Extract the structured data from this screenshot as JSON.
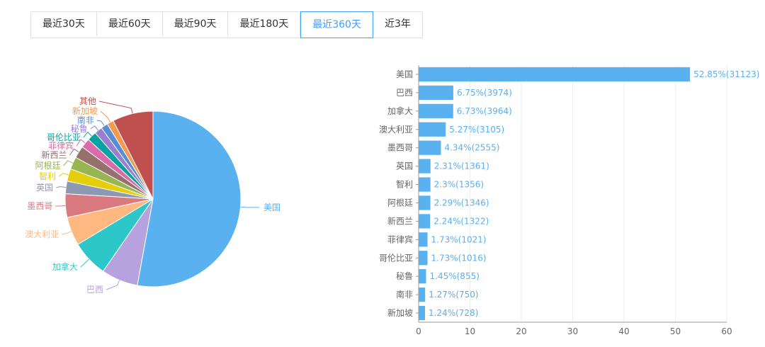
{
  "tabs": [
    {
      "label": "最近30天",
      "active": false
    },
    {
      "label": "最近60天",
      "active": false
    },
    {
      "label": "最近90天",
      "active": false
    },
    {
      "label": "最近180天",
      "active": false
    },
    {
      "label": "最近360天",
      "active": true
    },
    {
      "label": "近3年",
      "active": false
    }
  ],
  "accent_color": "#409eff",
  "chart_data": [
    {
      "type": "pie",
      "slices": [
        {
          "label": "美国",
          "value": 31123,
          "color": "#5ab1ef"
        },
        {
          "label": "巴西",
          "value": 3974,
          "color": "#b6a2de"
        },
        {
          "label": "加拿大",
          "value": 3964,
          "color": "#2ec7c9"
        },
        {
          "label": "澳大利亚",
          "value": 3105,
          "color": "#ffb980"
        },
        {
          "label": "墨西哥",
          "value": 2555,
          "color": "#d87a80"
        },
        {
          "label": "英国",
          "value": 1361,
          "color": "#8d98b3"
        },
        {
          "label": "智利",
          "value": 1356,
          "color": "#e5cf0d"
        },
        {
          "label": "阿根廷",
          "value": 1346,
          "color": "#97b552"
        },
        {
          "label": "新西兰",
          "value": 1322,
          "color": "#95706d"
        },
        {
          "label": "菲律宾",
          "value": 1021,
          "color": "#dc69aa"
        },
        {
          "label": "哥伦比亚",
          "value": 1016,
          "color": "#07a2a4"
        },
        {
          "label": "秘鲁",
          "value": 855,
          "color": "#9a7fd1"
        },
        {
          "label": "南非",
          "value": 750,
          "color": "#588dd5"
        },
        {
          "label": "新加坡",
          "value": 728,
          "color": "#f5994e"
        },
        {
          "label": "其他",
          "value": 4400,
          "color": "#c05050"
        }
      ]
    },
    {
      "type": "bar",
      "orientation": "horizontal",
      "categories": [
        "美国",
        "巴西",
        "加拿大",
        "澳大利亚",
        "墨西哥",
        "英国",
        "智利",
        "阿根廷",
        "新西兰",
        "菲律宾",
        "哥伦比亚",
        "秘鲁",
        "南非",
        "新加坡"
      ],
      "values": [
        52.85,
        6.75,
        6.73,
        5.27,
        4.34,
        2.31,
        2.3,
        2.29,
        2.24,
        1.73,
        1.73,
        1.45,
        1.27,
        1.24
      ],
      "labels": [
        "52.85%(31123)",
        "6.75%(3974)",
        "6.73%(3964)",
        "5.27%(3105)",
        "4.34%(2555)",
        "2.31%(1361)",
        "2.3%(1356)",
        "2.29%(1346)",
        "2.24%(1322)",
        "1.73%(1021)",
        "1.73%(1016)",
        "1.45%(855)",
        "1.27%(750)",
        "1.24%(728)"
      ],
      "xlim": [
        0,
        60
      ],
      "xticks": [
        0,
        10,
        20,
        30,
        40,
        50,
        60
      ],
      "grid": true,
      "bar_color": "#5ab1ef"
    }
  ]
}
